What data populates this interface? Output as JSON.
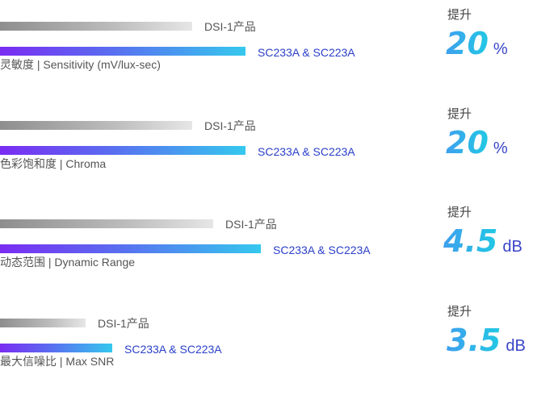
{
  "rows": [
    {
      "metric": "灵敏度 | Sensitivity (mV/lux-sec)",
      "baseline_label": "DSI-1产品",
      "new_label": "SC233A & SC223A",
      "gain_label": "提升",
      "gain_value": "20",
      "gain_unit": "%",
      "baseline_fraction": 0.36,
      "new_fraction": 0.46
    },
    {
      "metric": "色彩饱和度 | Chroma",
      "baseline_label": "DSI-1产品",
      "new_label": "SC233A & SC223A",
      "gain_label": "提升",
      "gain_value": "20",
      "gain_unit": "%",
      "baseline_fraction": 0.36,
      "new_fraction": 0.46
    },
    {
      "metric": "动态范围 | Dynamic Range",
      "baseline_label": "DSI-1产品",
      "new_label": "SC233A & SC223A",
      "gain_label": "提升",
      "gain_value": "4.5",
      "gain_unit": "dB",
      "baseline_fraction": 0.4,
      "new_fraction": 0.49
    },
    {
      "metric": "最大信噪比 | Max SNR",
      "baseline_label": "DSI-1产品",
      "new_label": "SC233A & SC223A",
      "gain_label": "提升",
      "gain_value": "3.5",
      "gain_unit": "dB",
      "baseline_fraction": 0.16,
      "new_fraction": 0.21
    }
  ]
}
